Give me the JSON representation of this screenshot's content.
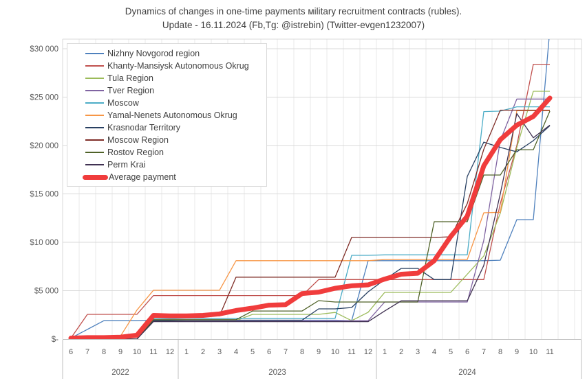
{
  "title": {
    "line1": "Dynamics of changes in one-time payments мilitary recruitment contracts (rubles).",
    "line2": "Update - 16.11.2024 (Fb,Tg: @istrebin) (Twitter-evgen1232007)"
  },
  "y_axis": {
    "tick_labels": [
      "$30 000",
      "$25 000",
      "$20 000",
      "$15 000",
      "$10 000",
      "$5 000",
      "$-"
    ],
    "min": 0,
    "max": 30000,
    "step": 5000
  },
  "x_axis": {
    "month_labels": [
      "6",
      "7",
      "8",
      "9",
      "10",
      "11",
      "12",
      "1",
      "2",
      "3",
      "4",
      "5",
      "6",
      "7",
      "8",
      "9",
      "10",
      "11",
      "12",
      "1",
      "2",
      "3",
      "4",
      "5",
      "6",
      "7",
      "8",
      "9",
      "10",
      "11"
    ],
    "year_groups": [
      {
        "label": "2022",
        "months": 7
      },
      {
        "label": "2023",
        "months": 12
      },
      {
        "label": "2024",
        "months": 11
      }
    ]
  },
  "chart_data": {
    "type": "line",
    "x": [
      "2022-06",
      "2022-07",
      "2022-08",
      "2022-09",
      "2022-10",
      "2022-11",
      "2022-12",
      "2023-01",
      "2023-02",
      "2023-03",
      "2023-04",
      "2023-05",
      "2023-06",
      "2023-07",
      "2023-08",
      "2023-09",
      "2023-10",
      "2023-11",
      "2023-12",
      "2024-01",
      "2024-02",
      "2024-03",
      "2024-04",
      "2024-05",
      "2024-06",
      "2024-07",
      "2024-08",
      "2024-09",
      "2024-10",
      "2024-11"
    ],
    "ylim": [
      0,
      30000
    ],
    "grid": true,
    "legend_position": "top-left",
    "series": [
      {
        "name": "Nizhny Novgorod region",
        "color": "#4F81BD",
        "width": 1.3,
        "values": [
          100,
          1000,
          1900,
          1900,
          1900,
          1950,
          1950,
          1950,
          1950,
          1950,
          1950,
          1950,
          1950,
          1950,
          1950,
          1950,
          1950,
          1900,
          8100,
          8100,
          8100,
          8100,
          8100,
          8100,
          8100,
          8100,
          8150,
          12340,
          12340,
          32000
        ]
      },
      {
        "name": "Khanty-Mansiysk Autonomous Okrug",
        "color": "#C0504D",
        "width": 1.3,
        "values": [
          100,
          2550,
          2550,
          2550,
          2550,
          4500,
          4500,
          4500,
          4500,
          4500,
          4500,
          4500,
          4500,
          4500,
          4500,
          6150,
          6150,
          6150,
          6150,
          6150,
          6150,
          6150,
          6150,
          6150,
          6150,
          6150,
          14000,
          20000,
          28400,
          28400
        ]
      },
      {
        "name": "Tula Region",
        "color": "#9BBB59",
        "width": 1.3,
        "values": [
          0,
          0,
          0,
          0,
          0,
          1900,
          1900,
          1900,
          1900,
          1900,
          1900,
          2550,
          2550,
          2550,
          2550,
          2550,
          2750,
          1900,
          2770,
          4820,
          4820,
          4820,
          4820,
          4820,
          6700,
          8580,
          13000,
          19800,
          25600,
          25600
        ]
      },
      {
        "name": "Tver Region",
        "color": "#8064A2",
        "width": 1.3,
        "values": [
          0,
          0,
          0,
          0,
          0,
          1900,
          1900,
          1900,
          1900,
          1900,
          1900,
          1900,
          1900,
          1900,
          1900,
          1900,
          1900,
          1900,
          1900,
          3830,
          3830,
          3830,
          3830,
          3830,
          3830,
          10200,
          20500,
          24800,
          24800,
          24800
        ]
      },
      {
        "name": "Moscow",
        "color": "#4BACC6",
        "width": 1.3,
        "values": [
          0,
          0,
          0,
          0,
          0,
          2100,
          2100,
          2150,
          2150,
          2150,
          2150,
          2150,
          2150,
          2150,
          2150,
          2150,
          2150,
          8650,
          8650,
          8700,
          8700,
          8700,
          8700,
          8700,
          8700,
          23500,
          23550,
          24000,
          24000,
          24000
        ]
      },
      {
        "name": "Yamal-Nenets Autonomous Okrug",
        "color": "#F79646",
        "width": 1.3,
        "values": [
          0,
          0,
          0,
          300,
          3000,
          5050,
          5050,
          5050,
          5050,
          5050,
          8100,
          8100,
          8100,
          8100,
          8100,
          8100,
          8100,
          8100,
          8100,
          8220,
          8220,
          8220,
          8220,
          8220,
          8220,
          13050,
          13100,
          23600,
          23600,
          23600
        ]
      },
      {
        "name": "Krasnodar Territory",
        "color": "#284062",
        "width": 1.3,
        "values": [
          0,
          0,
          0,
          0,
          0,
          1900,
          1900,
          1950,
          1950,
          1950,
          1950,
          1950,
          1950,
          1950,
          1950,
          3120,
          3120,
          3260,
          4890,
          6150,
          7300,
          7300,
          6150,
          6150,
          16800,
          20350,
          19800,
          19350,
          20500,
          22050
        ]
      },
      {
        "name": "Moscow Region",
        "color": "#7E2B25",
        "width": 1.3,
        "values": [
          0,
          0,
          0,
          0,
          0,
          2400,
          2400,
          2400,
          2400,
          2400,
          6400,
          6400,
          6400,
          6400,
          6400,
          6400,
          6400,
          10500,
          10500,
          10500,
          10500,
          10500,
          10500,
          10570,
          14000,
          19600,
          23650,
          23650,
          23650,
          23650
        ]
      },
      {
        "name": "Rostov Region",
        "color": "#4F6228",
        "width": 1.3,
        "values": [
          0,
          0,
          0,
          0,
          0,
          2000,
          2000,
          2000,
          2000,
          2000,
          2000,
          2900,
          2900,
          2900,
          2900,
          3970,
          3830,
          3830,
          3830,
          3830,
          3830,
          3830,
          12130,
          12130,
          12130,
          16950,
          16950,
          19570,
          19570,
          23550
        ]
      },
      {
        "name": "Perm Krai",
        "color": "#403152",
        "width": 1.3,
        "values": [
          0,
          0,
          0,
          0,
          0,
          1800,
          1800,
          1800,
          1800,
          1800,
          1800,
          1800,
          1800,
          1800,
          1800,
          1800,
          1800,
          1800,
          1800,
          2900,
          3950,
          3950,
          3950,
          3950,
          3950,
          7600,
          15000,
          23300,
          20800,
          22100
        ]
      },
      {
        "name": "Average payment",
        "color": "#F03C3C",
        "width": 7,
        "emphasis": true,
        "values": [
          100,
          150,
          150,
          200,
          400,
          2450,
          2400,
          2400,
          2450,
          2600,
          2950,
          3200,
          3500,
          3550,
          4700,
          4850,
          5250,
          5500,
          5600,
          6200,
          6700,
          6800,
          8100,
          10600,
          12700,
          17900,
          20600,
          22100,
          23000,
          24900
        ]
      }
    ]
  },
  "colors": {
    "grid_h": "#D9D9D9",
    "grid_v": "#E8E8E8",
    "plot_border": "#D9D9D9",
    "axis_line": "#BFBFBF",
    "tick_text": "#595959",
    "title_text": "#404040"
  }
}
